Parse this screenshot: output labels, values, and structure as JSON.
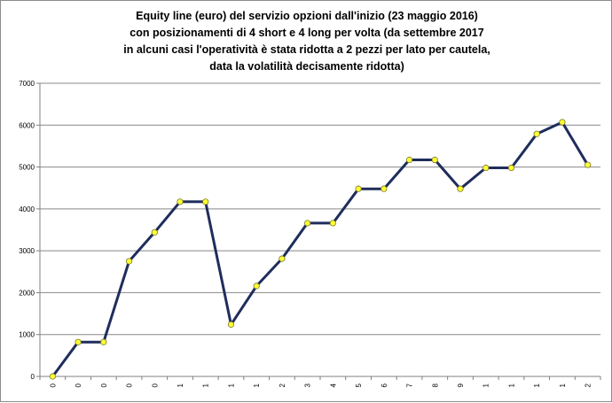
{
  "chart_data": {
    "type": "line",
    "title_lines": [
      "Equity line (euro) del servizio opzioni dall'inizio (23 maggio 2016)",
      "con posizionamenti di 4 short e 4 long per volta (da settembre 2017",
      "in alcuni casi l'operatività è stata ridotta a 2 pezzi per lato per cautela,",
      "data la volatilità decisamente ridotta)"
    ],
    "xlabel": "",
    "ylabel": "",
    "ylim": [
      0,
      7000
    ],
    "yticks": [
      "0",
      "1000",
      "2000",
      "3000",
      "4000",
      "5000",
      "6000",
      "7000"
    ],
    "categories": [
      "0",
      "0",
      "0",
      "0",
      "0",
      "1",
      "1",
      "1",
      "1",
      "2",
      "3",
      "4",
      "5",
      "6",
      "7",
      "8",
      "9",
      "1",
      "1",
      "1",
      "1",
      "2"
    ],
    "series": [
      {
        "values": [
          0,
          820,
          820,
          2750,
          3440,
          4170,
          4170,
          1240,
          2160,
          2810,
          3660,
          3660,
          4480,
          4480,
          5170,
          5170,
          4480,
          4980,
          4980,
          5790,
          6070,
          5050
        ]
      }
    ],
    "grid": "horizontal",
    "legend": "none",
    "colors": {
      "line": "#1f2d5c",
      "marker_fill": "#ffff33",
      "marker_stroke": "#7a7a2a",
      "grid": "#888888",
      "axis": "#808080"
    }
  }
}
